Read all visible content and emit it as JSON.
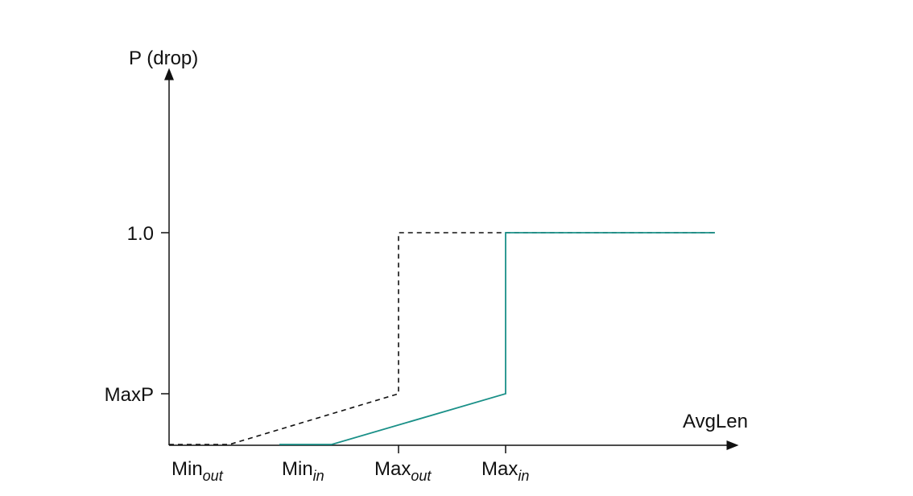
{
  "y_axis": {
    "label": "P (drop)",
    "ticks": [
      "1.0",
      "MaxP"
    ]
  },
  "x_axis": {
    "label": "AvgLen",
    "ticks": [
      {
        "main": "Min",
        "sub": "out"
      },
      {
        "main": "Min",
        "sub": "in"
      },
      {
        "main": "Max",
        "sub": "out"
      },
      {
        "main": "Max",
        "sub": "in"
      }
    ]
  }
}
